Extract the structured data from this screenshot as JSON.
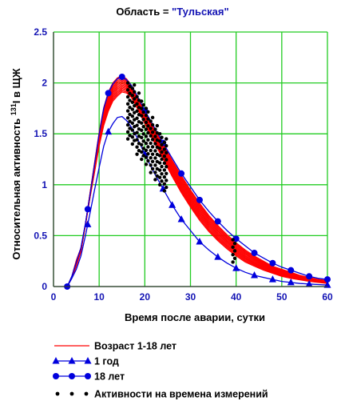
{
  "title": {
    "prefix": "Область = ",
    "value": "\"Тульская\""
  },
  "colors": {
    "grid": "#22cc22",
    "age_range": "#ff0000",
    "one_year": "#0000dd",
    "eighteen": "#0000dd",
    "measurements": "#000000",
    "tick": "#1414b4"
  },
  "chart_data": {
    "type": "line",
    "title": "Область = \"Тульская\"",
    "xlabel": "Время после аварии, сутки",
    "ylabel": "Относительная активность 131I в ЩЖ",
    "ylabel_parts": {
      "pre": "Относительная активность ",
      "sup": "131",
      "post": "I в ЩЖ"
    },
    "xlim": [
      0,
      60
    ],
    "ylim": [
      0,
      2.5
    ],
    "xticks": [
      0,
      10,
      20,
      30,
      40,
      50,
      60
    ],
    "yticks": [
      0,
      0.5,
      1,
      1.5,
      2,
      2.5
    ],
    "grid": true,
    "legend_position": "bottom",
    "series": [
      {
        "name": "Возраст 1-18 лет",
        "style": "line",
        "x": [
          3,
          4,
          5,
          6,
          7,
          8,
          9,
          10,
          11,
          12,
          13,
          14,
          15,
          16,
          17,
          18,
          20,
          22,
          24,
          26,
          28,
          30,
          32,
          34,
          36,
          38,
          40,
          42,
          44,
          46,
          48,
          50,
          52,
          54,
          56,
          58,
          60
        ],
        "band_low": [
          0,
          0.08,
          0.2,
          0.34,
          0.6,
          0.87,
          1.12,
          1.38,
          1.58,
          1.72,
          1.82,
          1.87,
          1.91,
          1.9,
          1.86,
          1.78,
          1.6,
          1.42,
          1.25,
          1.08,
          0.92,
          0.78,
          0.65,
          0.54,
          0.45,
          0.37,
          0.3,
          0.24,
          0.2,
          0.16,
          0.13,
          0.1,
          0.08,
          0.065,
          0.05,
          0.04,
          0.03
        ],
        "band_high": [
          0,
          0.1,
          0.26,
          0.38,
          0.62,
          0.92,
          1.22,
          1.52,
          1.76,
          1.91,
          2.0,
          2.05,
          2.07,
          2.04,
          1.98,
          1.9,
          1.72,
          1.56,
          1.4,
          1.24,
          1.09,
          0.95,
          0.82,
          0.7,
          0.6,
          0.51,
          0.43,
          0.36,
          0.3,
          0.25,
          0.2,
          0.17,
          0.14,
          0.11,
          0.09,
          0.07,
          0.06
        ],
        "count": 14
      },
      {
        "name": "1 год",
        "style": "triangles",
        "x": [
          3,
          4,
          5,
          6,
          7,
          8,
          9,
          10,
          11,
          12,
          13,
          14,
          15,
          16,
          17,
          18,
          20,
          22,
          24,
          26,
          28,
          30,
          32,
          34,
          36,
          38,
          40,
          42,
          44,
          46,
          48,
          50,
          52,
          54,
          56,
          58,
          60
        ],
        "y": [
          0,
          0.08,
          0.17,
          0.3,
          0.5,
          0.72,
          0.95,
          1.17,
          1.38,
          1.52,
          1.6,
          1.66,
          1.67,
          1.63,
          1.57,
          1.49,
          1.3,
          1.12,
          0.96,
          0.8,
          0.66,
          0.55,
          0.44,
          0.36,
          0.29,
          0.23,
          0.18,
          0.14,
          0.11,
          0.09,
          0.07,
          0.05,
          0.04,
          0.03,
          0.025,
          0.02,
          0.015
        ],
        "markers_x": [
          7.5,
          12,
          20,
          24,
          26,
          28,
          32,
          36,
          40,
          44,
          48,
          52,
          56,
          60
        ]
      },
      {
        "name": "18 лет",
        "style": "circles",
        "x": [
          3,
          4,
          5,
          6,
          7,
          8,
          9,
          10,
          11,
          12,
          13,
          14,
          15,
          16,
          17,
          18,
          20,
          22,
          24,
          26,
          28,
          30,
          32,
          34,
          36,
          38,
          40,
          42,
          44,
          46,
          48,
          50,
          52,
          54,
          56,
          58,
          60
        ],
        "y": [
          0,
          0.1,
          0.24,
          0.38,
          0.62,
          0.9,
          1.2,
          1.5,
          1.75,
          1.9,
          1.99,
          2.04,
          2.06,
          2.03,
          1.98,
          1.9,
          1.73,
          1.57,
          1.41,
          1.26,
          1.11,
          0.98,
          0.85,
          0.74,
          0.64,
          0.55,
          0.47,
          0.4,
          0.33,
          0.28,
          0.23,
          0.19,
          0.16,
          0.13,
          0.1,
          0.08,
          0.07
        ],
        "markers_x": [
          3,
          7.5,
          12,
          15,
          20,
          24,
          28,
          32,
          36,
          40,
          44,
          48,
          52,
          56,
          60
        ]
      },
      {
        "name": "Активности на времена измерений",
        "style": "dots",
        "columns": [
          {
            "x": 16.5,
            "y_min": 1.45,
            "y_max": 2.0
          },
          {
            "x": 17.5,
            "y_min": 1.4,
            "y_max": 1.98
          },
          {
            "x": 18.5,
            "y_min": 1.3,
            "y_max": 1.9
          },
          {
            "x": 19.5,
            "y_min": 1.25,
            "y_max": 1.82
          },
          {
            "x": 20.5,
            "y_min": 1.2,
            "y_max": 1.75
          },
          {
            "x": 21.5,
            "y_min": 1.12,
            "y_max": 1.66
          },
          {
            "x": 22.5,
            "y_min": 1.05,
            "y_max": 1.58
          },
          {
            "x": 23.5,
            "y_min": 1.0,
            "y_max": 1.5
          },
          {
            "x": 24.5,
            "y_min": 0.94,
            "y_max": 1.45
          },
          {
            "x": 39.5,
            "y_min": 0.24,
            "y_max": 0.46
          }
        ]
      }
    ]
  }
}
